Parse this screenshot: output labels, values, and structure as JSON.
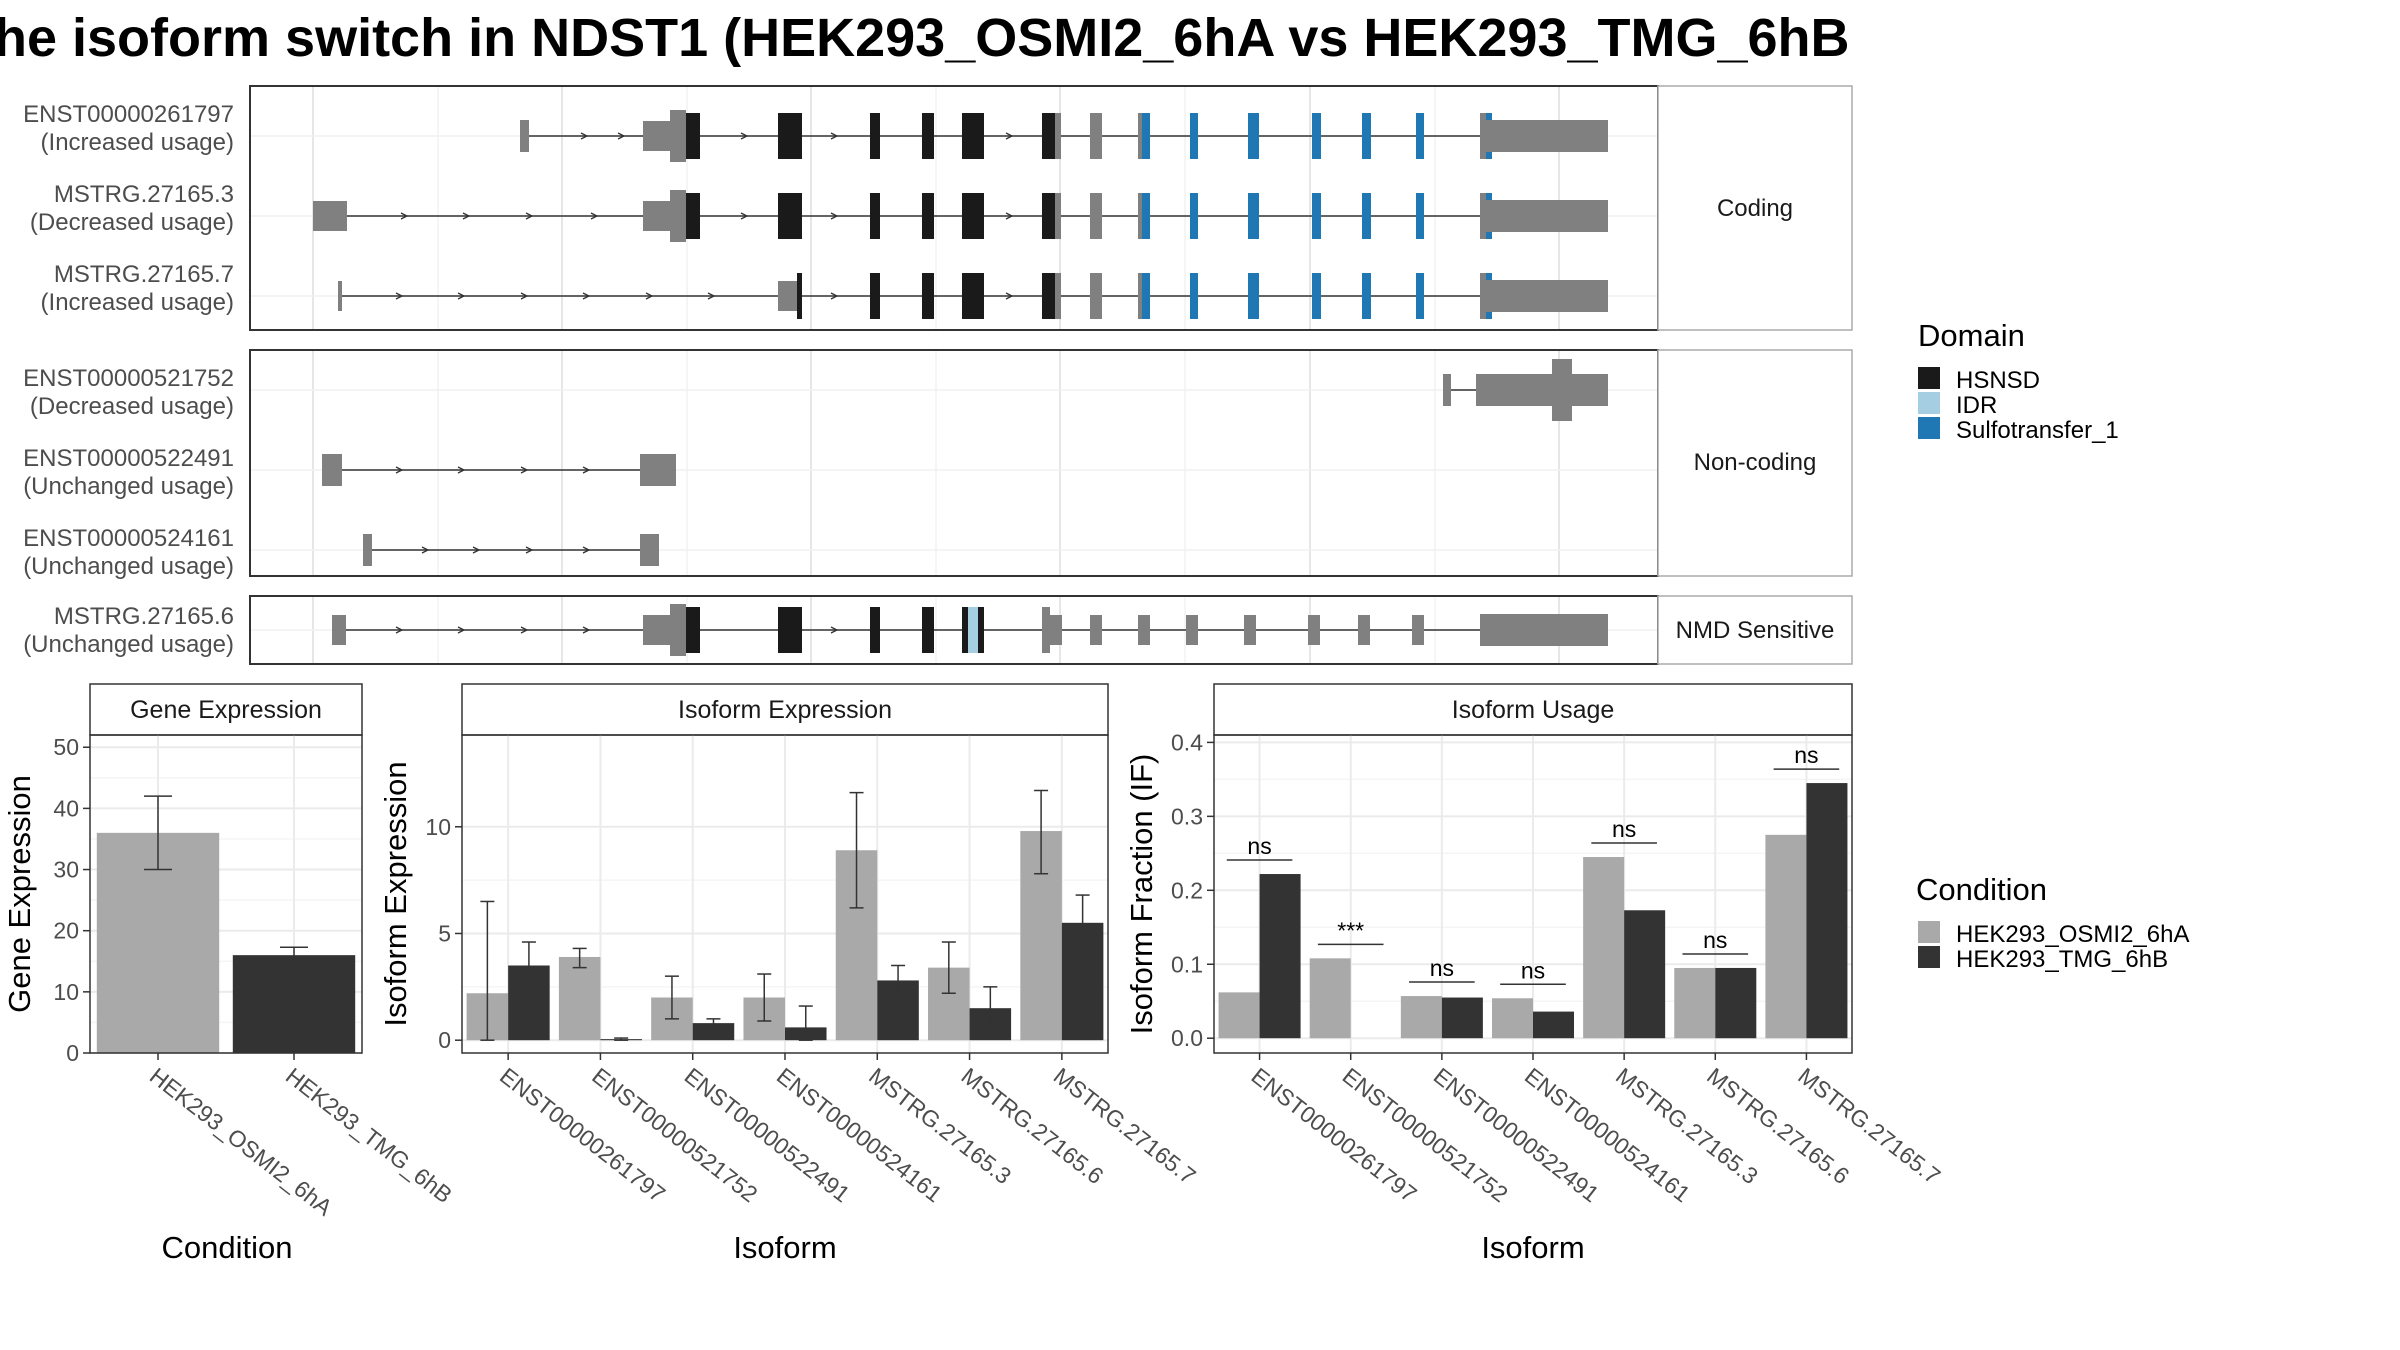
{
  "title": "he isoform switch in NDST1 (HEK293_OSMI2_6hA vs HEK293_TMG_6hB",
  "colors": {
    "hsnsd": "#1a1a1a",
    "idr": "#a6cee3",
    "sulfotransfer": "#1f78b4",
    "utr": "#808080",
    "cond_a": "#a9a9a9",
    "cond_b": "#333333"
  },
  "structure": {
    "panels": [
      {
        "label": "Coding",
        "isoforms": [
          {
            "id": "ENST00000261797",
            "usage": "(Increased usage)"
          },
          {
            "id": "MSTRG.27165.3",
            "usage": "(Decreased usage)"
          },
          {
            "id": "MSTRG.27165.7",
            "usage": "(Increased usage)"
          }
        ]
      },
      {
        "label": "Non-coding",
        "isoforms": [
          {
            "id": "ENST00000521752",
            "usage": "(Decreased usage)"
          },
          {
            "id": "ENST00000522491",
            "usage": "(Unchanged usage)"
          },
          {
            "id": "ENST00000524161",
            "usage": "(Unchanged usage)"
          }
        ]
      },
      {
        "label": "NMD Sensitive",
        "isoforms": [
          {
            "id": "MSTRG.27165.6",
            "usage": "(Unchanged usage)"
          }
        ]
      }
    ]
  },
  "legend_domain": {
    "title": "Domain",
    "items": [
      {
        "label": "HSNSD",
        "color": "#1a1a1a"
      },
      {
        "label": "IDR",
        "color": "#a6cee3"
      },
      {
        "label": "Sulfotransfer_1",
        "color": "#1f78b4"
      }
    ]
  },
  "legend_condition": {
    "title": "Condition",
    "items": [
      {
        "label": "HEK293_OSMI2_6hA",
        "color": "#a9a9a9"
      },
      {
        "label": "HEK293_TMG_6hB",
        "color": "#333333"
      }
    ]
  },
  "chart_data": [
    {
      "type": "bar",
      "title": "Gene Expression",
      "xlabel": "Condition",
      "ylabel": "Gene Expression",
      "ylim": [
        0,
        52
      ],
      "yticks": [
        0,
        10,
        20,
        30,
        40,
        50
      ],
      "categories": [
        "HEK293_OSMI2_6hA",
        "HEK293_TMG_6hB"
      ],
      "values": [
        36,
        16
      ],
      "errors": [
        [
          30,
          42
        ],
        [
          15,
          17.3
        ]
      ],
      "colors": [
        "#a9a9a9",
        "#333333"
      ]
    },
    {
      "type": "bar",
      "title": "Isoform Expression",
      "xlabel": "Isoform",
      "ylabel": "Isoform Expression",
      "ylim": [
        -0.6,
        14.3
      ],
      "yticks": [
        0,
        5,
        10
      ],
      "categories": [
        "ENST00000261797",
        "ENST00000521752",
        "ENST00000522491",
        "ENST00000524161",
        "MSTRG.27165.3",
        "MSTRG.27165.6",
        "MSTRG.27165.7"
      ],
      "series": [
        {
          "name": "HEK293_OSMI2_6hA",
          "values": [
            2.2,
            3.9,
            2.0,
            2.0,
            8.9,
            3.4,
            9.8
          ],
          "errors": [
            [
              0,
              6.5
            ],
            [
              3.4,
              4.3
            ],
            [
              1.0,
              3.0
            ],
            [
              0.9,
              3.1
            ],
            [
              6.2,
              11.6
            ],
            [
              2.2,
              4.6
            ],
            [
              7.8,
              11.7
            ]
          ]
        },
        {
          "name": "HEK293_TMG_6hB",
          "values": [
            3.5,
            0.05,
            0.8,
            0.6,
            2.8,
            1.5,
            5.5
          ],
          "errors": [
            [
              2.4,
              4.6
            ],
            [
              0,
              0.1
            ],
            [
              0.6,
              1.0
            ],
            [
              0,
              1.6
            ],
            [
              2.1,
              3.5
            ],
            [
              0.4,
              2.5
            ],
            [
              4.2,
              6.8
            ]
          ]
        }
      ]
    },
    {
      "type": "bar",
      "title": "Isoform Usage",
      "xlabel": "Isoform",
      "ylabel": "Isoform Fraction (IF)",
      "ylim": [
        -0.02,
        0.41
      ],
      "yticks": [
        0.0,
        0.1,
        0.2,
        0.3,
        0.4
      ],
      "ytick_labels": [
        "0.0",
        "0.1",
        "0.2",
        "0.3",
        "0.4"
      ],
      "categories": [
        "ENST00000261797",
        "ENST00000521752",
        "ENST00000522491",
        "ENST00000524161",
        "MSTRG.27165.3",
        "MSTRG.27165.6",
        "MSTRG.27165.7"
      ],
      "series": [
        {
          "name": "HEK293_OSMI2_6hA",
          "values": [
            0.062,
            0.108,
            0.057,
            0.054,
            0.245,
            0.095,
            0.275
          ]
        },
        {
          "name": "HEK293_TMG_6hB",
          "values": [
            0.222,
            0.0,
            0.055,
            0.036,
            0.173,
            0.095,
            0.345
          ]
        }
      ],
      "significance": [
        "ns",
        "***",
        "ns",
        "ns",
        "ns",
        "ns",
        "ns"
      ]
    }
  ]
}
